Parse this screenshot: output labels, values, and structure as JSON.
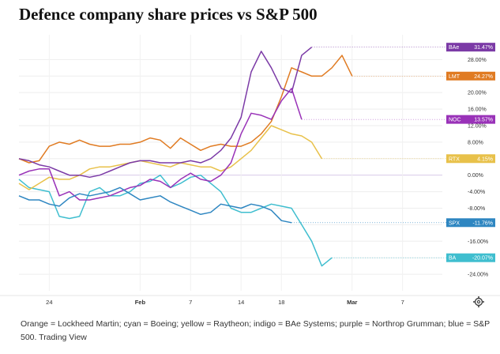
{
  "title": "Defence company share prices vs S&P 500",
  "caption": "Orange = Lockheed Martin; cyan = Boeing; yellow = Raytheon; indigo = BAe Systems; purple = Northrop Grumman; blue = S&P 500. Trading View",
  "settings_icon": "gear-icon",
  "chart_data": {
    "type": "line",
    "title": "Defence company share prices vs S&P 500",
    "xlabel": "",
    "ylabel": "",
    "ylim": [
      -28,
      34
    ],
    "y_ticks": [
      "28.00%",
      "24.00%",
      "20.00%",
      "16.00%",
      "12.00%",
      "8.00%",
      "4.00%",
      "0.00%",
      "-4.00%",
      "-8.00%",
      "-12.00%",
      "-16.00%",
      "-20.00%",
      "-24.00%"
    ],
    "y_tick_values": [
      28,
      24,
      20,
      16,
      12,
      8,
      4,
      0,
      -4,
      -8,
      -12,
      -16,
      -20,
      -24
    ],
    "x_ticks": [
      {
        "label": "24",
        "x": 3
      },
      {
        "label": "Feb",
        "x": 12,
        "bold": true
      },
      {
        "label": "7",
        "x": 17
      },
      {
        "label": "14",
        "x": 22
      },
      {
        "label": "18",
        "x": 26
      },
      {
        "label": "Mar",
        "x": 33,
        "bold": true
      },
      {
        "label": "7",
        "x": 38
      }
    ],
    "xlim": [
      0,
      41
    ],
    "grid": true,
    "zero_line": true,
    "series": [
      {
        "name": "LMT",
        "color": "#e07b22",
        "badge": "24.27%",
        "values": [
          [
            0,
            4
          ],
          [
            1,
            3
          ],
          [
            2,
            3.5
          ],
          [
            3,
            7
          ],
          [
            4,
            8
          ],
          [
            5,
            7.5
          ],
          [
            6,
            8.5
          ],
          [
            7,
            7.5
          ],
          [
            8,
            7
          ],
          [
            9,
            7
          ],
          [
            10,
            7.5
          ],
          [
            11,
            7.5
          ],
          [
            12,
            8
          ],
          [
            13,
            9
          ],
          [
            14,
            8.5
          ],
          [
            15,
            6.5
          ],
          [
            16,
            9
          ],
          [
            17,
            7.5
          ],
          [
            18,
            6
          ],
          [
            19,
            7
          ],
          [
            20,
            7.5
          ],
          [
            21,
            7
          ],
          [
            22,
            7
          ],
          [
            23,
            8
          ],
          [
            24,
            10
          ],
          [
            25,
            13
          ],
          [
            26,
            19
          ],
          [
            27,
            26
          ],
          [
            28,
            25
          ],
          [
            29,
            24
          ],
          [
            30,
            24
          ],
          [
            31,
            26
          ],
          [
            32,
            29
          ],
          [
            33,
            24
          ]
        ]
      },
      {
        "name": "BA",
        "color": "#3fbecf",
        "badge": "-20.07%",
        "values": [
          [
            0,
            -1
          ],
          [
            1,
            -3
          ],
          [
            2,
            -3.5
          ],
          [
            3,
            -4
          ],
          [
            4,
            -10
          ],
          [
            5,
            -10.5
          ],
          [
            6,
            -10
          ],
          [
            7,
            -4
          ],
          [
            8,
            -3
          ],
          [
            9,
            -5
          ],
          [
            10,
            -5
          ],
          [
            11,
            -4
          ],
          [
            12,
            -2
          ],
          [
            13,
            -1.5
          ],
          [
            14,
            0
          ],
          [
            15,
            -3
          ],
          [
            16,
            -2
          ],
          [
            17,
            -0.5
          ],
          [
            18,
            0
          ],
          [
            19,
            -2
          ],
          [
            20,
            -4
          ],
          [
            21,
            -8
          ],
          [
            22,
            -9
          ],
          [
            23,
            -9
          ],
          [
            24,
            -8
          ],
          [
            25,
            -7
          ],
          [
            26,
            -7.5
          ],
          [
            27,
            -8
          ],
          [
            28,
            -12
          ],
          [
            29,
            -16
          ],
          [
            30,
            -22
          ],
          [
            31,
            -20
          ]
        ]
      },
      {
        "name": "RTX",
        "color": "#e8c14a",
        "badge": "4.15%",
        "values": [
          [
            0,
            -2
          ],
          [
            1,
            -3.5
          ],
          [
            2,
            -2
          ],
          [
            3,
            -0.5
          ],
          [
            4,
            -1
          ],
          [
            5,
            -1
          ],
          [
            6,
            0
          ],
          [
            7,
            1.5
          ],
          [
            8,
            2
          ],
          [
            9,
            2
          ],
          [
            10,
            2.5
          ],
          [
            11,
            3
          ],
          [
            12,
            3.5
          ],
          [
            13,
            3
          ],
          [
            14,
            2.5
          ],
          [
            15,
            2
          ],
          [
            16,
            3
          ],
          [
            17,
            2.5
          ],
          [
            18,
            2
          ],
          [
            19,
            2
          ],
          [
            20,
            1
          ],
          [
            21,
            2
          ],
          [
            22,
            4
          ],
          [
            23,
            6
          ],
          [
            24,
            9
          ],
          [
            25,
            12
          ],
          [
            26,
            11
          ],
          [
            27,
            10
          ],
          [
            28,
            9.5
          ],
          [
            29,
            8
          ],
          [
            30,
            4
          ]
        ]
      },
      {
        "name": "BAe",
        "color": "#7b3aa6",
        "badge": "31.47%",
        "values": [
          [
            0,
            4
          ],
          [
            1,
            3.5
          ],
          [
            2,
            2.5
          ],
          [
            3,
            2
          ],
          [
            4,
            1
          ],
          [
            5,
            0
          ],
          [
            6,
            0
          ],
          [
            7,
            -0.5
          ],
          [
            8,
            0
          ],
          [
            9,
            1
          ],
          [
            10,
            2
          ],
          [
            11,
            3
          ],
          [
            12,
            3.5
          ],
          [
            13,
            3.5
          ],
          [
            14,
            3
          ],
          [
            15,
            3
          ],
          [
            16,
            3
          ],
          [
            17,
            3.5
          ],
          [
            18,
            3
          ],
          [
            19,
            4
          ],
          [
            20,
            6
          ],
          [
            21,
            9
          ],
          [
            22,
            14
          ],
          [
            23,
            25
          ],
          [
            24,
            30
          ],
          [
            25,
            26
          ],
          [
            26,
            21
          ],
          [
            27,
            20
          ],
          [
            28,
            29
          ],
          [
            29,
            31
          ]
        ]
      },
      {
        "name": "NOC",
        "color": "#9932b8",
        "badge": "13.57%",
        "values": [
          [
            0,
            0
          ],
          [
            1,
            1
          ],
          [
            2,
            1.5
          ],
          [
            3,
            1.5
          ],
          [
            4,
            -5
          ],
          [
            5,
            -4
          ],
          [
            6,
            -6
          ],
          [
            7,
            -6
          ],
          [
            8,
            -5.5
          ],
          [
            9,
            -5
          ],
          [
            10,
            -4
          ],
          [
            11,
            -3
          ],
          [
            12,
            -2.5
          ],
          [
            13,
            -1
          ],
          [
            14,
            -1.5
          ],
          [
            15,
            -3
          ],
          [
            16,
            -1
          ],
          [
            17,
            0.5
          ],
          [
            18,
            -1
          ],
          [
            19,
            -1.5
          ],
          [
            20,
            0
          ],
          [
            21,
            3
          ],
          [
            22,
            10
          ],
          [
            23,
            15
          ],
          [
            24,
            14.5
          ],
          [
            25,
            13.5
          ],
          [
            26,
            18
          ],
          [
            27,
            21
          ],
          [
            28,
            13.5
          ]
        ]
      },
      {
        "name": "SPX",
        "color": "#2e86c1",
        "badge": "-11.76%",
        "values": [
          [
            0,
            -5
          ],
          [
            1,
            -6
          ],
          [
            2,
            -6
          ],
          [
            3,
            -7
          ],
          [
            4,
            -7.5
          ],
          [
            5,
            -5.5
          ],
          [
            6,
            -4.5
          ],
          [
            7,
            -5
          ],
          [
            8,
            -4.5
          ],
          [
            9,
            -4
          ],
          [
            10,
            -3
          ],
          [
            11,
            -4.5
          ],
          [
            12,
            -6
          ],
          [
            13,
            -5.5
          ],
          [
            14,
            -5
          ],
          [
            15,
            -6.5
          ],
          [
            16,
            -7.5
          ],
          [
            17,
            -8.5
          ],
          [
            18,
            -9.5
          ],
          [
            19,
            -9
          ],
          [
            20,
            -7
          ],
          [
            21,
            -7.5
          ],
          [
            22,
            -8
          ],
          [
            23,
            -7
          ],
          [
            24,
            -7.5
          ],
          [
            25,
            -8.5
          ],
          [
            26,
            -11
          ],
          [
            27,
            -11.5
          ]
        ]
      }
    ]
  }
}
